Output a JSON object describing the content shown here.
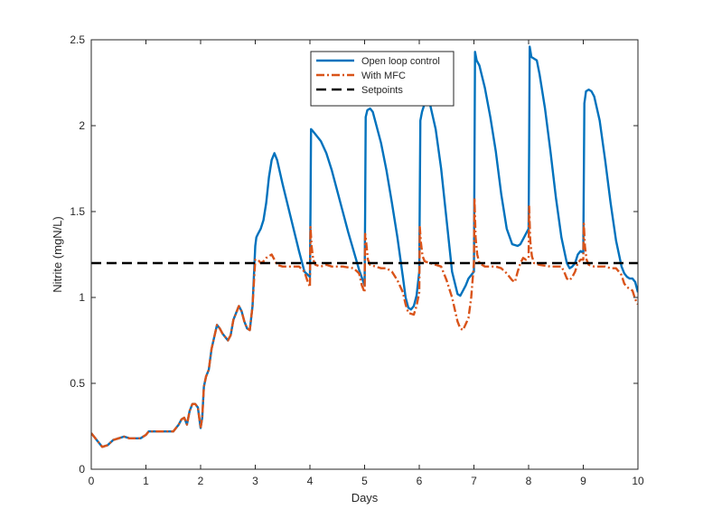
{
  "chart_data": {
    "type": "line",
    "title": "",
    "xlabel": "Days",
    "ylabel": "Nitrite (mgN/L)",
    "xlim": [
      0,
      10
    ],
    "ylim": [
      0,
      2.5
    ],
    "xticks": [
      0,
      1,
      2,
      3,
      4,
      5,
      6,
      7,
      8,
      9,
      10
    ],
    "yticks": [
      0,
      0.5,
      1,
      1.5,
      2,
      2.5
    ],
    "xtick_labels": [
      "0",
      "1",
      "2",
      "3",
      "4",
      "5",
      "6",
      "7",
      "8",
      "9",
      "10"
    ],
    "ytick_labels": [
      "0",
      "0.5",
      "1",
      "1.5",
      "2",
      "2.5"
    ],
    "grid": false,
    "legend_position": "top-center",
    "series": [
      {
        "name": "Open loop control",
        "color": "#0072BD",
        "style": "solid",
        "x": [
          0,
          0.1,
          0.2,
          0.3,
          0.4,
          0.5,
          0.6,
          0.7,
          0.8,
          0.9,
          1.0,
          1.05,
          1.1,
          1.3,
          1.5,
          1.6,
          1.65,
          1.7,
          1.75,
          1.8,
          1.85,
          1.9,
          1.95,
          2.0,
          2.03,
          2.06,
          2.1,
          2.15,
          2.2,
          2.3,
          2.35,
          2.4,
          2.45,
          2.5,
          2.55,
          2.6,
          2.7,
          2.75,
          2.8,
          2.85,
          2.9,
          2.95,
          3.0,
          3.02,
          3.05,
          3.1,
          3.15,
          3.2,
          3.25,
          3.3,
          3.35,
          3.4,
          3.5,
          3.6,
          3.7,
          3.8,
          3.9,
          4.0,
          4.01,
          4.02,
          4.05,
          4.1,
          4.2,
          4.3,
          4.4,
          4.5,
          4.6,
          4.7,
          4.8,
          4.9,
          5.0,
          5.01,
          5.02,
          5.05,
          5.1,
          5.15,
          5.2,
          5.3,
          5.4,
          5.5,
          5.6,
          5.7,
          5.75,
          5.8,
          5.85,
          5.9,
          5.95,
          6.0,
          6.01,
          6.02,
          6.05,
          6.1,
          6.15,
          6.2,
          6.25,
          6.3,
          6.4,
          6.5,
          6.6,
          6.7,
          6.75,
          6.8,
          6.85,
          6.9,
          6.95,
          7.0,
          7.01,
          7.02,
          7.05,
          7.1,
          7.2,
          7.3,
          7.4,
          7.5,
          7.6,
          7.7,
          7.8,
          7.85,
          7.9,
          7.95,
          8.0,
          8.01,
          8.02,
          8.05,
          8.1,
          8.15,
          8.2,
          8.3,
          8.4,
          8.5,
          8.6,
          8.7,
          8.75,
          8.8,
          8.85,
          8.9,
          8.95,
          9.0,
          9.01,
          9.02,
          9.05,
          9.1,
          9.15,
          9.2,
          9.3,
          9.4,
          9.5,
          9.6,
          9.7,
          9.75,
          9.8,
          9.85,
          9.9,
          9.95,
          10.0
        ],
        "y": [
          0.21,
          0.17,
          0.13,
          0.14,
          0.17,
          0.18,
          0.19,
          0.18,
          0.18,
          0.18,
          0.2,
          0.22,
          0.22,
          0.22,
          0.22,
          0.26,
          0.29,
          0.3,
          0.26,
          0.34,
          0.38,
          0.38,
          0.36,
          0.24,
          0.3,
          0.48,
          0.54,
          0.58,
          0.7,
          0.84,
          0.82,
          0.79,
          0.77,
          0.75,
          0.78,
          0.87,
          0.95,
          0.92,
          0.86,
          0.82,
          0.81,
          0.95,
          1.3,
          1.35,
          1.37,
          1.4,
          1.45,
          1.55,
          1.7,
          1.8,
          1.84,
          1.8,
          1.66,
          1.53,
          1.4,
          1.27,
          1.15,
          1.12,
          1.5,
          1.98,
          1.97,
          1.95,
          1.91,
          1.84,
          1.74,
          1.62,
          1.5,
          1.38,
          1.27,
          1.16,
          1.07,
          1.5,
          2.05,
          2.09,
          2.1,
          2.08,
          2.02,
          1.9,
          1.74,
          1.55,
          1.35,
          1.12,
          1.0,
          0.94,
          0.93,
          0.95,
          1.01,
          1.15,
          1.6,
          2.03,
          2.08,
          2.13,
          2.14,
          2.12,
          2.05,
          1.98,
          1.75,
          1.45,
          1.15,
          1.02,
          1.01,
          1.04,
          1.07,
          1.11,
          1.13,
          1.15,
          1.8,
          2.43,
          2.38,
          2.35,
          2.22,
          2.05,
          1.85,
          1.6,
          1.4,
          1.31,
          1.3,
          1.31,
          1.34,
          1.37,
          1.4,
          1.9,
          2.46,
          2.4,
          2.39,
          2.38,
          2.3,
          2.1,
          1.85,
          1.58,
          1.35,
          1.2,
          1.17,
          1.18,
          1.2,
          1.25,
          1.27,
          1.26,
          1.7,
          2.13,
          2.2,
          2.21,
          2.2,
          2.17,
          2.03,
          1.8,
          1.55,
          1.33,
          1.18,
          1.14,
          1.12,
          1.11,
          1.11,
          1.09,
          1.03
        ]
      },
      {
        "name": "With MFC",
        "color": "#D95319",
        "style": "dash-dot",
        "x": [
          0,
          0.1,
          0.2,
          0.3,
          0.4,
          0.5,
          0.6,
          0.7,
          0.8,
          0.9,
          1.0,
          1.05,
          1.1,
          1.3,
          1.5,
          1.6,
          1.65,
          1.7,
          1.75,
          1.8,
          1.85,
          1.9,
          1.95,
          2.0,
          2.03,
          2.06,
          2.1,
          2.15,
          2.2,
          2.3,
          2.35,
          2.4,
          2.45,
          2.5,
          2.55,
          2.6,
          2.7,
          2.75,
          2.8,
          2.85,
          2.9,
          2.95,
          3.0,
          3.05,
          3.1,
          3.15,
          3.2,
          3.3,
          3.35,
          3.4,
          3.5,
          3.6,
          3.7,
          3.8,
          3.9,
          3.95,
          4.0,
          4.01,
          4.03,
          4.06,
          4.1,
          4.2,
          4.3,
          4.4,
          4.6,
          4.8,
          4.9,
          4.95,
          5.0,
          5.01,
          5.03,
          5.06,
          5.1,
          5.2,
          5.3,
          5.4,
          5.5,
          5.6,
          5.7,
          5.75,
          5.8,
          5.9,
          5.95,
          6.0,
          6.01,
          6.03,
          6.06,
          6.1,
          6.2,
          6.3,
          6.4,
          6.5,
          6.6,
          6.7,
          6.75,
          6.8,
          6.9,
          6.95,
          7.0,
          7.01,
          7.03,
          7.06,
          7.1,
          7.2,
          7.4,
          7.5,
          7.6,
          7.7,
          7.75,
          7.8,
          7.85,
          7.9,
          7.95,
          8.0,
          8.01,
          8.03,
          8.06,
          8.1,
          8.2,
          8.4,
          8.6,
          8.65,
          8.7,
          8.75,
          8.8,
          8.85,
          8.9,
          8.95,
          9.0,
          9.01,
          9.03,
          9.06,
          9.1,
          9.2,
          9.3,
          9.4,
          9.5,
          9.6,
          9.7,
          9.75,
          9.8,
          9.9,
          9.95,
          10.0
        ],
        "y": [
          0.21,
          0.17,
          0.13,
          0.14,
          0.17,
          0.18,
          0.19,
          0.18,
          0.18,
          0.18,
          0.2,
          0.22,
          0.22,
          0.22,
          0.22,
          0.26,
          0.29,
          0.3,
          0.26,
          0.34,
          0.38,
          0.38,
          0.36,
          0.24,
          0.3,
          0.48,
          0.54,
          0.58,
          0.7,
          0.84,
          0.82,
          0.79,
          0.77,
          0.75,
          0.78,
          0.87,
          0.95,
          0.92,
          0.86,
          0.82,
          0.81,
          0.95,
          1.22,
          1.22,
          1.2,
          1.21,
          1.23,
          1.25,
          1.22,
          1.19,
          1.18,
          1.18,
          1.18,
          1.18,
          1.15,
          1.1,
          1.06,
          1.41,
          1.3,
          1.22,
          1.19,
          1.18,
          1.19,
          1.18,
          1.18,
          1.17,
          1.14,
          1.07,
          1.03,
          1.37,
          1.32,
          1.22,
          1.19,
          1.18,
          1.17,
          1.17,
          1.15,
          1.1,
          1.03,
          0.96,
          0.91,
          0.9,
          0.95,
          1.03,
          1.41,
          1.32,
          1.24,
          1.21,
          1.2,
          1.19,
          1.18,
          1.1,
          1.0,
          0.86,
          0.82,
          0.81,
          0.88,
          1.0,
          1.2,
          1.58,
          1.35,
          1.25,
          1.2,
          1.18,
          1.18,
          1.17,
          1.14,
          1.1,
          1.09,
          1.15,
          1.2,
          1.23,
          1.22,
          1.23,
          1.53,
          1.33,
          1.24,
          1.2,
          1.19,
          1.18,
          1.18,
          1.15,
          1.11,
          1.1,
          1.12,
          1.15,
          1.2,
          1.22,
          1.22,
          1.43,
          1.3,
          1.22,
          1.19,
          1.18,
          1.18,
          1.18,
          1.17,
          1.17,
          1.13,
          1.08,
          1.06,
          1.04,
          0.99,
          0.96
        ]
      },
      {
        "name": "Setpoints",
        "color": "#000000",
        "style": "dashed",
        "x": [
          0,
          10
        ],
        "y": [
          1.2,
          1.2
        ]
      }
    ]
  }
}
